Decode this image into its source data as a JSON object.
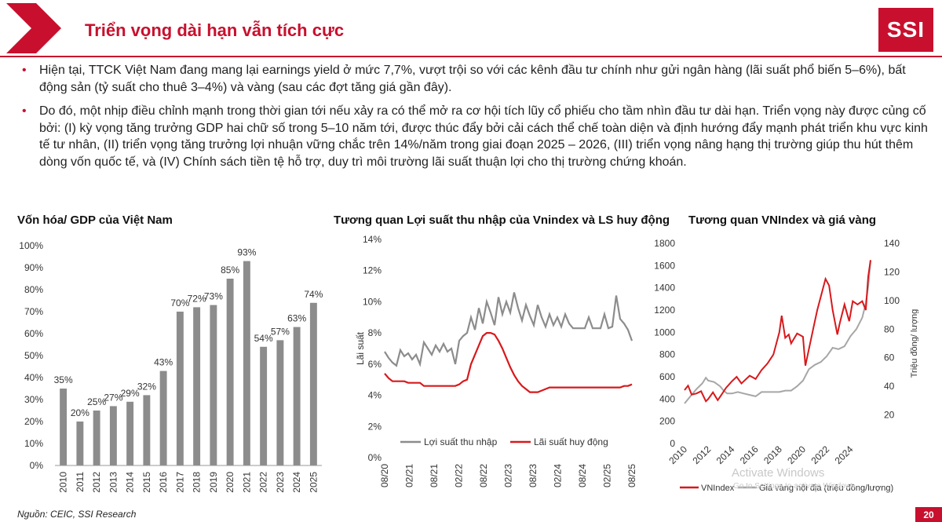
{
  "header": {
    "title": "Triển vọng dài hạn vẫn tích cực",
    "logo_text": "SSI",
    "accent_color": "#c8102e"
  },
  "bullets": [
    "Hiện tại, TTCK Việt Nam đang mang lại earnings yield ở mức 7,7%, vượt trội so với các kênh đầu tư chính như  gửi ngân hàng (lãi suất phổ biến 5–6%), bất động sản (tỷ suất cho thuê 3–4%) và vàng (sau các đợt tăng giá gần đây).",
    "Do đó, một nhịp điều chỉnh mạnh trong thời gian tới nếu xảy ra có thể mở ra cơ hội tích lũy cổ phiếu cho tầm nhìn đầu tư dài hạn. Triển vọng này được củng cố bởi: (I) kỳ vọng tăng trưởng GDP hai chữ số trong 5–10 năm tới, được thúc đẩy bởi cải cách thể chế toàn diện và định hướng đẩy mạnh phát triển khu vực kinh tế tư nhân, (II) triển vọng tăng trưởng lợi nhuận vững chắc trên 14%/năm trong giai đoạn 2025 – 2026, (III) triển vọng nâng hạng thị trường giúp thu hút thêm dòng vốn quốc tế, và (IV) Chính sách tiền tệ hỗ trợ, duy trì môi trường lãi suất thuận lợi cho thị trường chứng khoán."
  ],
  "chart_data": [
    {
      "type": "bar",
      "title": "Vốn hóa/ GDP của Việt Nam",
      "categories": [
        "2010",
        "2011",
        "2012",
        "2013",
        "2014",
        "2015",
        "2016",
        "2017",
        "2018",
        "2019",
        "2020",
        "2021",
        "2022",
        "2023",
        "2024",
        "2025"
      ],
      "values": [
        35,
        20,
        25,
        27,
        29,
        32,
        43,
        70,
        72,
        73,
        85,
        93,
        54,
        57,
        63,
        74
      ],
      "data_labels": [
        "35%",
        "20%",
        "25%",
        "27%",
        "29%",
        "32%",
        "43%",
        "70%",
        "72%",
        "73%",
        "85%",
        "93%",
        "54%",
        "57%",
        "63%",
        "74%"
      ],
      "yticks": [
        "0%",
        "10%",
        "20%",
        "30%",
        "40%",
        "50%",
        "60%",
        "70%",
        "80%",
        "90%",
        "100%"
      ],
      "ylim": [
        0,
        100
      ],
      "bar_color": "#8c8c8c",
      "grid": false
    },
    {
      "type": "line",
      "title": "Tương quan Lợi suất thu nhập của Vnindex và LS huy động",
      "ylabel": "Lãi suất",
      "ylim": [
        0,
        14
      ],
      "yticks": [
        "0%",
        "2%",
        "4%",
        "6%",
        "8%",
        "10%",
        "12%",
        "14%"
      ],
      "xticks": [
        "08/20",
        "02/21",
        "08/21",
        "02/22",
        "08/22",
        "02/23",
        "08/23",
        "02/24",
        "08/24",
        "02/25",
        "08/25"
      ],
      "legend_position": "bottom",
      "series": [
        {
          "name": "Lợi suất thu nhập",
          "color": "#8c8c8c",
          "values": [
            6.8,
            6.4,
            6.1,
            5.9,
            6.9,
            6.5,
            6.7,
            6.3,
            6.6,
            6.0,
            7.4,
            7.0,
            6.6,
            7.2,
            6.8,
            7.3,
            6.8,
            7.0,
            6.0,
            7.5,
            7.8,
            8.0,
            9.0,
            8.2,
            9.6,
            8.6,
            10.0,
            9.3,
            8.5,
            10.3,
            9.2,
            10.0,
            9.3,
            10.6,
            9.6,
            8.8,
            9.8,
            9.1,
            8.5,
            9.8,
            9.0,
            8.4,
            9.2,
            8.5,
            9.0,
            8.4,
            9.2,
            8.6,
            8.3,
            8.3,
            8.3,
            8.3,
            9.0,
            8.3,
            8.3,
            8.3,
            9.2,
            8.3,
            8.4,
            10.4,
            8.9,
            8.6,
            8.2,
            7.5
          ]
        },
        {
          "name": "Lãi suất huy động",
          "color": "#d7191c",
          "values": [
            5.4,
            5.1,
            4.9,
            4.9,
            4.9,
            4.9,
            4.8,
            4.8,
            4.8,
            4.8,
            4.6,
            4.6,
            4.6,
            4.6,
            4.6,
            4.6,
            4.6,
            4.6,
            4.6,
            4.7,
            4.9,
            5.0,
            6.0,
            6.6,
            7.2,
            7.8,
            8.0,
            8.0,
            7.9,
            7.5,
            7.0,
            6.4,
            5.8,
            5.3,
            4.9,
            4.6,
            4.4,
            4.2,
            4.2,
            4.2,
            4.3,
            4.4,
            4.5,
            4.5,
            4.5,
            4.5,
            4.5,
            4.5,
            4.5,
            4.5,
            4.5,
            4.5,
            4.5,
            4.5,
            4.5,
            4.5,
            4.5,
            4.5,
            4.5,
            4.5,
            4.5,
            4.6,
            4.6,
            4.7
          ]
        }
      ]
    },
    {
      "type": "line",
      "title": "Tương quan VNIndex và giá vàng",
      "xticks": [
        "2010",
        "2012",
        "2014",
        "2016",
        "2018",
        "2020",
        "2022",
        "2024"
      ],
      "yticks_left": [
        "0",
        "200",
        "400",
        "600",
        "800",
        "1000",
        "1200",
        "1400",
        "1600",
        "1800"
      ],
      "yticks_right": [
        "20",
        "40",
        "60",
        "80",
        "100",
        "120",
        "140"
      ],
      "ylim_left": [
        0,
        1800
      ],
      "ylim_right": [
        0,
        140
      ],
      "ylabel_right": "Triệu đồng/ lượng",
      "legend_position": "bottom",
      "series": [
        {
          "name": "VNIndex",
          "axis": "left",
          "color": "#d7191c",
          "points": [
            [
              2010,
              480
            ],
            [
              2010.3,
              520
            ],
            [
              2010.6,
              440
            ],
            [
              2011,
              450
            ],
            [
              2011.4,
              470
            ],
            [
              2011.8,
              380
            ],
            [
              2012,
              400
            ],
            [
              2012.4,
              460
            ],
            [
              2012.8,
              390
            ],
            [
              2013,
              420
            ],
            [
              2013.5,
              500
            ],
            [
              2014,
              560
            ],
            [
              2014.4,
              600
            ],
            [
              2014.8,
              540
            ],
            [
              2015,
              560
            ],
            [
              2015.5,
              610
            ],
            [
              2016,
              580
            ],
            [
              2016.5,
              660
            ],
            [
              2017,
              720
            ],
            [
              2017.5,
              800
            ],
            [
              2018,
              1000
            ],
            [
              2018.2,
              1150
            ],
            [
              2018.5,
              950
            ],
            [
              2018.8,
              980
            ],
            [
              2019,
              900
            ],
            [
              2019.5,
              990
            ],
            [
              2020,
              960
            ],
            [
              2020.2,
              700
            ],
            [
              2020.5,
              850
            ],
            [
              2020.9,
              1050
            ],
            [
              2021.2,
              1200
            ],
            [
              2021.5,
              1320
            ],
            [
              2021.9,
              1480
            ],
            [
              2022.2,
              1420
            ],
            [
              2022.5,
              1200
            ],
            [
              2022.9,
              980
            ],
            [
              2023.1,
              1080
            ],
            [
              2023.5,
              1250
            ],
            [
              2023.9,
              1100
            ],
            [
              2024.2,
              1280
            ],
            [
              2024.6,
              1250
            ],
            [
              2025,
              1280
            ],
            [
              2025.3,
              1200
            ],
            [
              2025.5,
              1500
            ],
            [
              2025.7,
              1650
            ]
          ]
        },
        {
          "name": "Giá vàng nội địa (triệu đồng/lượng)",
          "axis": "right",
          "color": "#a6a6a6",
          "points": [
            [
              2010,
              28
            ],
            [
              2010.5,
              33
            ],
            [
              2011,
              38
            ],
            [
              2011.5,
              42
            ],
            [
              2011.8,
              46
            ],
            [
              2012,
              44
            ],
            [
              2012.5,
              43
            ],
            [
              2013,
              40
            ],
            [
              2013.3,
              37
            ],
            [
              2013.6,
              35
            ],
            [
              2014,
              35
            ],
            [
              2014.5,
              36
            ],
            [
              2015,
              35
            ],
            [
              2015.5,
              34
            ],
            [
              2016,
              33
            ],
            [
              2016.5,
              36
            ],
            [
              2017,
              36
            ],
            [
              2017.5,
              36
            ],
            [
              2018,
              36
            ],
            [
              2018.5,
              37
            ],
            [
              2019,
              37
            ],
            [
              2019.5,
              40
            ],
            [
              2020,
              44
            ],
            [
              2020.5,
              52
            ],
            [
              2021,
              55
            ],
            [
              2021.5,
              57
            ],
            [
              2022,
              61
            ],
            [
              2022.5,
              67
            ],
            [
              2023,
              66
            ],
            [
              2023.5,
              68
            ],
            [
              2024,
              75
            ],
            [
              2024.5,
              80
            ],
            [
              2025,
              88
            ],
            [
              2025.3,
              98
            ],
            [
              2025.5,
              110
            ],
            [
              2025.7,
              128
            ]
          ]
        }
      ]
    }
  ],
  "footer": {
    "source": "Nguồn: CEIC, SSI Research",
    "page_number": "20"
  },
  "watermark": {
    "line1": "Activate Windows",
    "line2": "Go to Settings to activate Windows."
  }
}
